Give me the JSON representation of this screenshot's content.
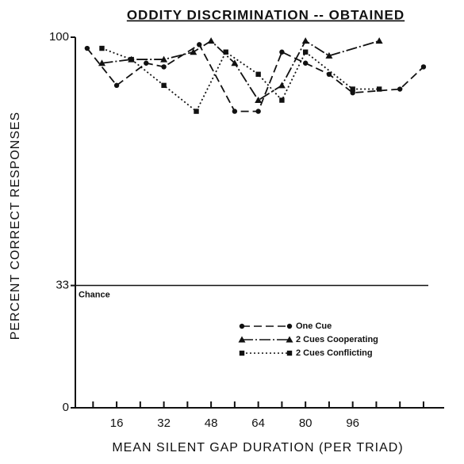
{
  "chart_data": {
    "type": "line",
    "title": "ODDITY DISCRIMINATION -- OBTAINED",
    "xlabel": "MEAN SILENT GAP DURATION (PER TRIAD)",
    "ylabel": "PERCENT CORRECT RESPONSES",
    "xlim": [
      2,
      127
    ],
    "ylim": [
      0,
      100
    ],
    "xticks": [
      16,
      32,
      48,
      64,
      80,
      96
    ],
    "x_minor_ticks": [
      8,
      24,
      40,
      56,
      72,
      88,
      104,
      112,
      120
    ],
    "yticks": [
      0,
      33,
      100
    ],
    "annotations": [
      {
        "text": "Chance",
        "y": 33
      }
    ],
    "legend": "lower right",
    "series": [
      {
        "name": "One Cue",
        "color": "#111111",
        "marker": "circle",
        "dash": "10 5",
        "x": [
          6,
          16,
          26,
          32,
          44,
          56,
          64,
          72,
          80,
          88,
          96,
          112,
          120
        ],
        "values": [
          97,
          87,
          93,
          92,
          98,
          80,
          80,
          96,
          93,
          90,
          85,
          86,
          92
        ]
      },
      {
        "name": "2 Cues Cooperating",
        "color": "#111111",
        "marker": "triangle",
        "dash": "14 3 2 3",
        "x": [
          11,
          21,
          32,
          42,
          48,
          56,
          64,
          72,
          80,
          88,
          105
        ],
        "values": [
          93,
          94,
          94,
          96,
          99,
          93,
          83,
          87,
          99,
          95,
          99
        ]
      },
      {
        "name": "2 Cues Conflicting",
        "color": "#111111",
        "marker": "square",
        "dash": "2 3",
        "x": [
          11,
          21,
          32,
          43,
          53,
          64,
          72,
          80,
          96,
          105
        ],
        "values": [
          97,
          94,
          87,
          80,
          96,
          90,
          83,
          96,
          86,
          86
        ]
      }
    ]
  }
}
